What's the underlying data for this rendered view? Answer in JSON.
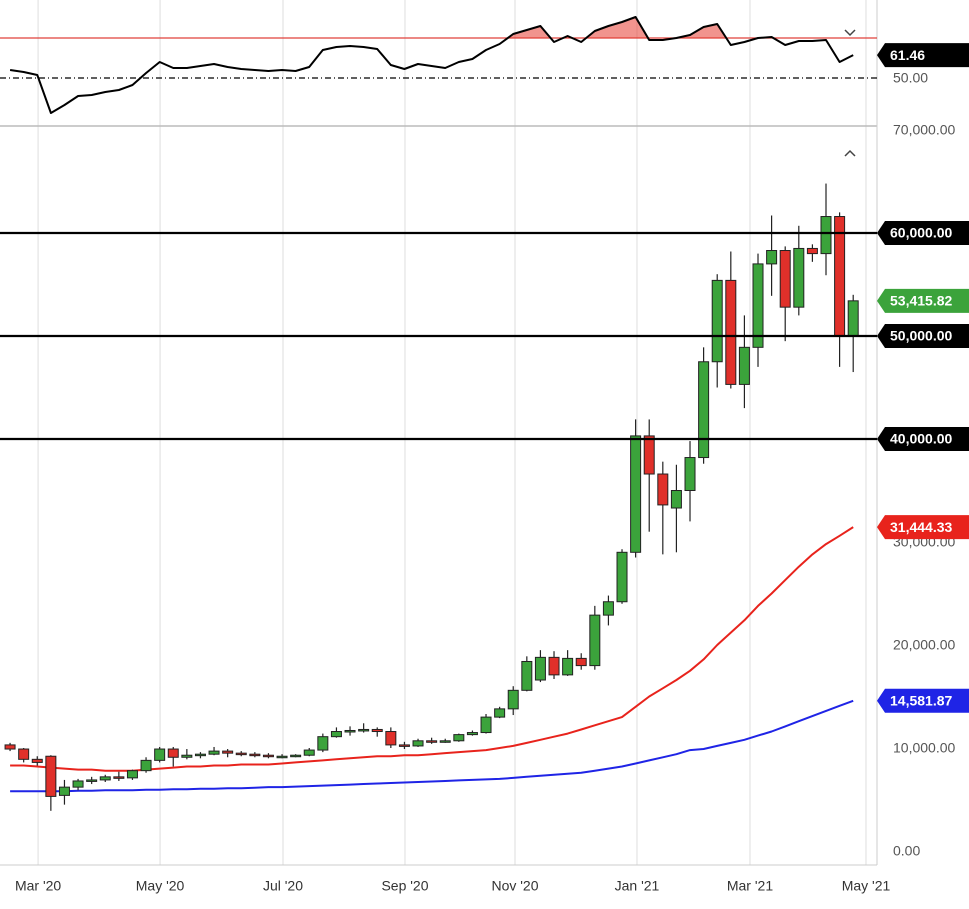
{
  "chart_data": [
    {
      "type": "line",
      "xlim": [
        -0.74,
        63.75
      ],
      "ylim": [
        26.5,
        89
      ],
      "yticks": [
        {
          "value": 50,
          "label": "50.00"
        }
      ],
      "levels": [
        {
          "value": 70,
          "color": "#e0403a",
          "fill": "rgba(230,60,50,0.55)"
        },
        {
          "value": 50,
          "color": "#000000",
          "dash": true
        }
      ],
      "series": [
        {
          "color": "#000000",
          "label": "61.46",
          "values": [
            54,
            53,
            51.5,
            32.5,
            36.5,
            41,
            41.5,
            43,
            44,
            46.5,
            52.5,
            58,
            55,
            55,
            56,
            57,
            55.5,
            54.5,
            54,
            53.5,
            54,
            53.5,
            55.5,
            64,
            65.5,
            66,
            65.5,
            64.5,
            56.5,
            54.5,
            57,
            56,
            55,
            58,
            59.5,
            64,
            67,
            72,
            74,
            76,
            68,
            71,
            68,
            73.5,
            76,
            78,
            80.5,
            69,
            69,
            70,
            71.5,
            75.5,
            77,
            66.5,
            68,
            70,
            70.5,
            66.5,
            68.5,
            68.5,
            69,
            58,
            61.46
          ]
        }
      ]
    },
    {
      "type": "candlestick",
      "xlim": [
        -0.74,
        63.75
      ],
      "ylim": [
        0,
        70000
      ],
      "grid": "vertical",
      "xticks": [
        {
          "value": 2.06,
          "label": "Mar '20"
        },
        {
          "value": 11.03,
          "label": "May '20"
        },
        {
          "value": 20.07,
          "label": "Jul '20"
        },
        {
          "value": 29.04,
          "label": "Sep '20"
        },
        {
          "value": 37.13,
          "label": "Nov '20"
        },
        {
          "value": 46.1,
          "label": "Jan '21"
        },
        {
          "value": 54.41,
          "label": "Mar '21"
        },
        {
          "value": 62.94,
          "label": "May '21"
        }
      ],
      "yticks": [
        {
          "value": 0,
          "label": "0.00"
        },
        {
          "value": 10000,
          "label": "10,000.00"
        },
        {
          "value": 20000,
          "label": "20,000.00"
        },
        {
          "value": 30000,
          "label": "30,000.00"
        },
        {
          "value": 40000,
          "label": "40,000.00"
        },
        {
          "value": 50000,
          "label": "50,000.00"
        },
        {
          "value": 60000,
          "label": "60,000.00"
        },
        {
          "value": 70000,
          "label": "70,000.00"
        }
      ],
      "levels": [
        {
          "value": 60000,
          "label": "60,000.00"
        },
        {
          "value": 50000,
          "label": "50,000.00"
        },
        {
          "value": 40000,
          "label": "40,000.00"
        }
      ],
      "up_color": "#3ba33b",
      "down_color": "#e0302a",
      "candles": {
        "label": "53,415.82",
        "open": [
          10300,
          9900,
          8900,
          9200,
          5400,
          6200,
          6800,
          6900,
          7200,
          7100,
          7800,
          8800,
          9900,
          9100,
          9300,
          9400,
          9700,
          9500,
          9400,
          9300,
          9200,
          9300,
          9300,
          9800,
          11100,
          11600,
          11700,
          11800,
          11600,
          10300,
          10200,
          10700,
          10600,
          10700,
          11300,
          11500,
          13000,
          13800,
          15600,
          16600,
          18800,
          17100,
          18700,
          18000,
          22900,
          24200,
          29000,
          40300,
          36600,
          33300,
          35000,
          38200,
          47500,
          55400,
          45300,
          48900,
          57000,
          58300,
          52800,
          58500,
          58000,
          61600,
          50000
        ],
        "high": [
          10500,
          10000,
          9200,
          9300,
          6900,
          7000,
          7200,
          7400,
          7700,
          7900,
          9100,
          10100,
          10100,
          9900,
          9600,
          10100,
          9900,
          9700,
          9600,
          9500,
          9400,
          9400,
          10000,
          11400,
          12000,
          12100,
          12400,
          12000,
          12000,
          10600,
          10900,
          11000,
          10900,
          11400,
          11700,
          13300,
          14000,
          16000,
          18900,
          19500,
          19400,
          19500,
          19200,
          23800,
          24800,
          29300,
          41900,
          41900,
          37800,
          37500,
          39800,
          48900,
          56000,
          58200,
          52000,
          58000,
          61700,
          58700,
          60700,
          58900,
          64800,
          62000,
          54000
        ],
        "low": [
          9700,
          8600,
          8300,
          3900,
          4500,
          5900,
          6500,
          6700,
          6800,
          6900,
          7600,
          8600,
          8200,
          8900,
          9000,
          9300,
          9100,
          9200,
          9100,
          9000,
          9000,
          9100,
          9200,
          9600,
          11000,
          11200,
          11500,
          11100,
          10000,
          9900,
          10100,
          10400,
          10500,
          10600,
          11200,
          11400,
          12900,
          13200,
          15500,
          16400,
          16700,
          17000,
          17600,
          17600,
          21900,
          24000,
          28500,
          31000,
          28800,
          29000,
          32000,
          37600,
          45000,
          44900,
          43000,
          47000,
          53900,
          49500,
          52000,
          57200,
          55900,
          47000,
          46500
        ],
        "close": [
          9900,
          8900,
          8600,
          5300,
          6200,
          6800,
          6900,
          7200,
          7100,
          7800,
          8800,
          9900,
          9100,
          9300,
          9400,
          9700,
          9500,
          9400,
          9300,
          9200,
          9200,
          9300,
          9800,
          11100,
          11600,
          11700,
          11800,
          11600,
          10300,
          10200,
          10700,
          10600,
          10700,
          11300,
          11500,
          13000,
          13800,
          15600,
          18400,
          18800,
          17100,
          18700,
          18000,
          22900,
          24200,
          29000,
          40300,
          36600,
          33600,
          35000,
          38200,
          47500,
          55400,
          45300,
          48900,
          57000,
          58300,
          52800,
          58500,
          58000,
          61600,
          50000,
          53415.82
        ]
      },
      "series": [
        {
          "color": "#e8231c",
          "label": "31,444.33",
          "values": [
            8300,
            8300,
            8200,
            8100,
            8000,
            7900,
            7900,
            7800,
            7800,
            7800,
            7900,
            8000,
            8100,
            8200,
            8200,
            8300,
            8300,
            8400,
            8400,
            8400,
            8500,
            8600,
            8700,
            8800,
            8900,
            9000,
            9100,
            9200,
            9200,
            9300,
            9300,
            9400,
            9500,
            9600,
            9700,
            9800,
            10000,
            10200,
            10500,
            10800,
            11100,
            11400,
            11800,
            12200,
            12600,
            13000,
            14000,
            15000,
            15800,
            16600,
            17500,
            18600,
            20000,
            21200,
            22400,
            23800,
            25000,
            26300,
            27600,
            28800,
            29800,
            30600,
            31444.33
          ]
        },
        {
          "color": "#1f24e6",
          "label": "14,581.87",
          "values": [
            5800,
            5800,
            5800,
            5800,
            5800,
            5850,
            5850,
            5900,
            5900,
            5900,
            5950,
            5950,
            6000,
            6000,
            6050,
            6050,
            6100,
            6100,
            6150,
            6200,
            6200,
            6250,
            6300,
            6350,
            6400,
            6450,
            6500,
            6550,
            6600,
            6650,
            6700,
            6750,
            6800,
            6850,
            6900,
            6950,
            7000,
            7100,
            7200,
            7300,
            7400,
            7500,
            7600,
            7800,
            8000,
            8200,
            8500,
            8800,
            9100,
            9400,
            9800,
            9900,
            10200,
            10500,
            10800,
            11200,
            11600,
            12100,
            12600,
            13100,
            13600,
            14100,
            14581.87
          ]
        }
      ]
    }
  ]
}
